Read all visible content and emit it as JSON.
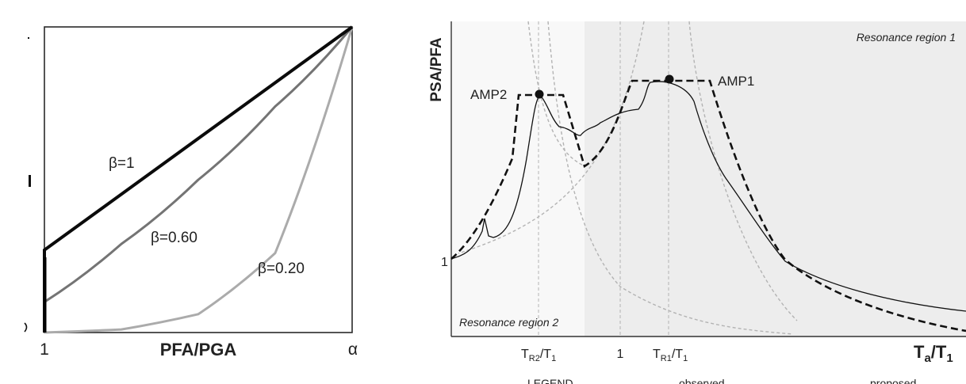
{
  "colors": {
    "beta_1": "#0b0b0b",
    "beta_060": "#747474",
    "beta_020": "#ababab",
    "region2_shade": "#f8f8f8",
    "region1_shade": "#ededed",
    "guide_lines": "#b3b3b3"
  },
  "chart_data": [
    {
      "type": "line",
      "title": "",
      "xlabel": "PFA/PGA",
      "ylabel": "",
      "x_tick_labels": [
        "1",
        "α"
      ],
      "y_tick_labels": [],
      "grid": false,
      "xlim": [
        0,
        1
      ],
      "ylim": [
        0,
        1
      ],
      "x_note": "normalized: 0 = 1, 1 = α",
      "series": [
        {
          "name": "β=1",
          "x": [
            0,
            0,
            1
          ],
          "y": [
            0,
            0.27,
            1
          ]
        },
        {
          "name": "β=0.60",
          "x": [
            0,
            0,
            0.25,
            0.5,
            0.75,
            1
          ],
          "y": [
            0,
            0.1,
            0.29,
            0.5,
            0.74,
            1
          ]
        },
        {
          "name": "β=0.20",
          "x": [
            0,
            0.25,
            0.5,
            0.75,
            1
          ],
          "y": [
            0,
            0.01,
            0.06,
            0.26,
            1
          ]
        }
      ]
    },
    {
      "type": "line",
      "title": "",
      "xlabel": "Ta/T1",
      "ylabel": "PSA/PFA",
      "x_tick_labels": [
        "TR2/T1",
        "1",
        "TR1/T1"
      ],
      "y_tick_labels": [
        "1"
      ],
      "grid": false,
      "regions": [
        {
          "label": "Resonance region 2"
        },
        {
          "label": "Resonance region 1"
        }
      ],
      "annotations": [
        "AMP2",
        "AMP1"
      ],
      "legend": {
        "title": "LEGEND",
        "entries": [
          "observed",
          "proposed"
        ]
      },
      "series": [
        {
          "name": "observed"
        },
        {
          "name": "proposed"
        }
      ]
    }
  ],
  "left_chart": {
    "xlabel": "PFA/PGA",
    "tick_1": "1",
    "tick_alpha": "α",
    "label_b1": "β=1",
    "label_b060": "β=0.60",
    "label_b020": "β=0.20"
  },
  "right_chart": {
    "ylabel": "PSA/PFA",
    "ytick_1": "1",
    "xtick_tr2": "T",
    "xtick_tr2_sub": "R2",
    "xtick_tr2_tail": "/T",
    "xtick_tr2_tail_sub": "1",
    "xtick_1": "1",
    "xtick_tr1": "T",
    "xtick_tr1_sub": "R1",
    "xtick_tr1_tail": "/T",
    "xtick_tr1_tail_sub": "1",
    "xlabel_main": "T",
    "xlabel_sub_a": "a",
    "xlabel_slash": "/T",
    "xlabel_sub_1": "1",
    "region1": "Resonance region 1",
    "region2": "Resonance region 2",
    "amp1": "AMP1",
    "amp2": "AMP2",
    "legend_title": "LEGEND",
    "legend_observed": "observed",
    "legend_proposed": "proposed"
  }
}
